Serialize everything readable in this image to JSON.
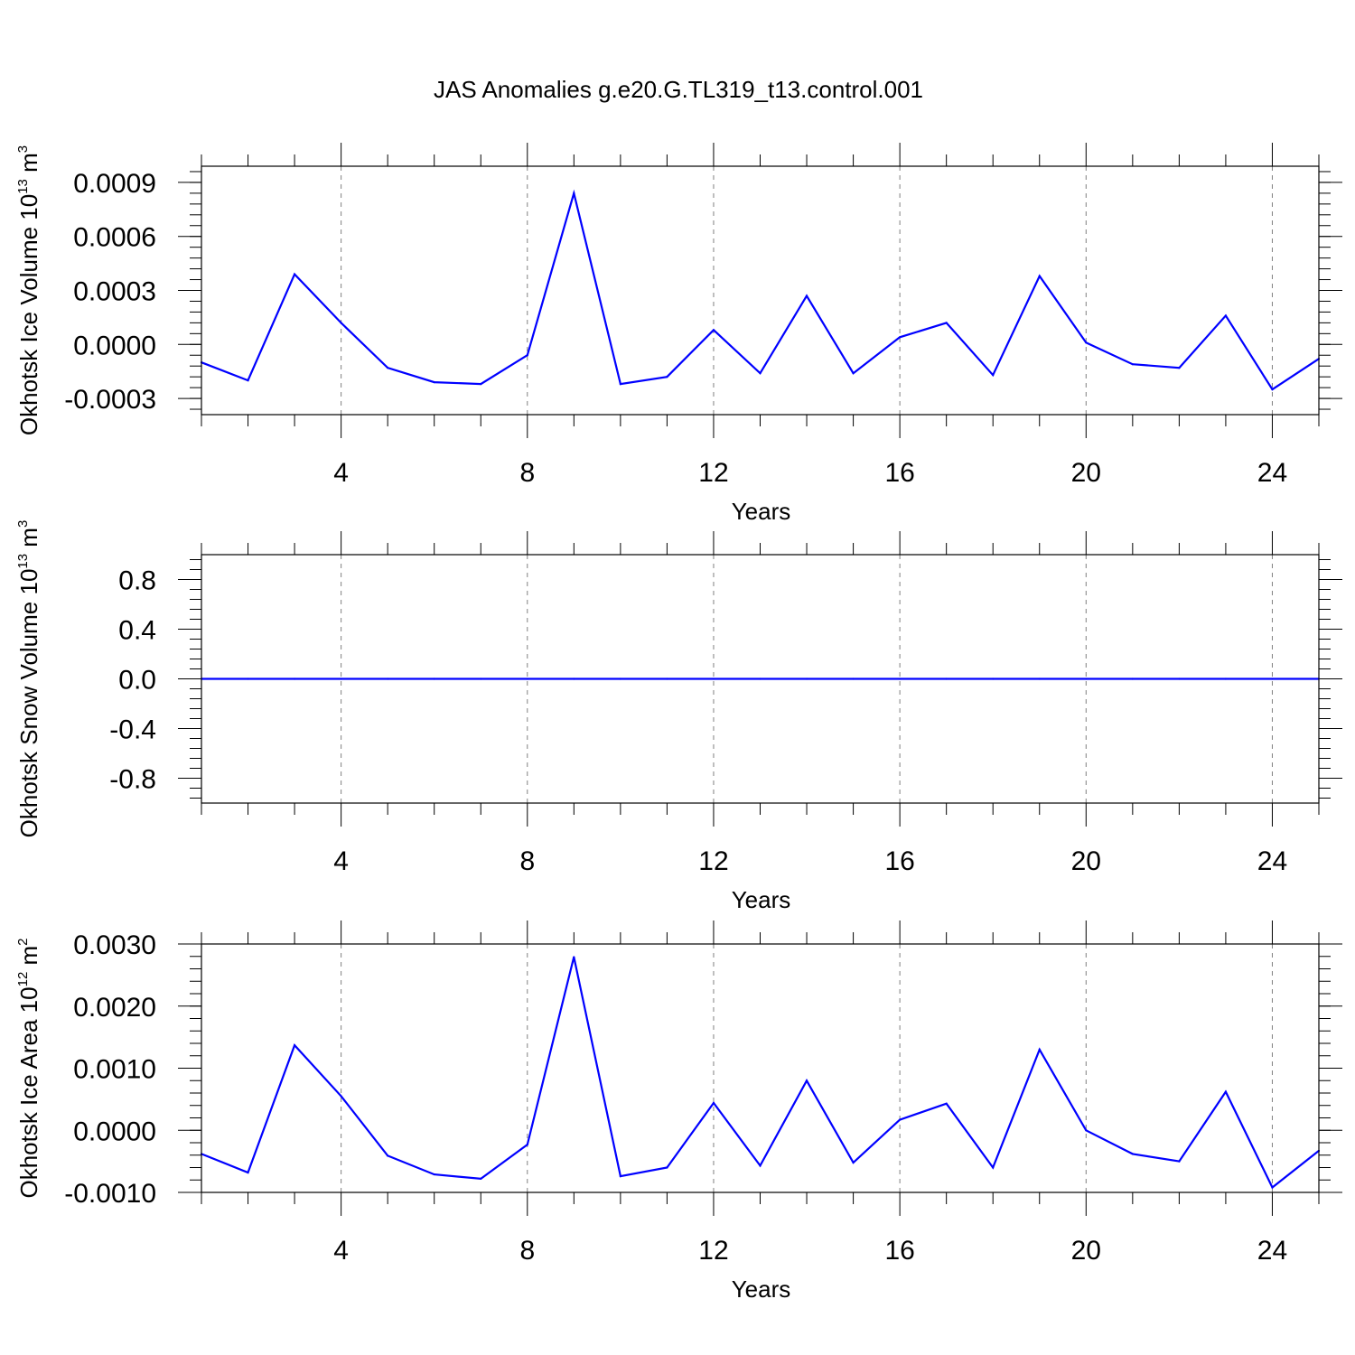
{
  "title": "JAS Anomalies g.e20.G.TL319_t13.control.001",
  "colors": {
    "series": "#0000ff",
    "axes": "#000000",
    "grid": "#808080"
  },
  "chart_data": [
    {
      "type": "line",
      "xlabel": "Years",
      "ylabel": {
        "text": "Okhotsk Ice Volume 10",
        "exp": "13",
        "unit": " m",
        "unit_exp": "3"
      },
      "xlim": [
        1,
        25
      ],
      "ylim": [
        -0.00039,
        0.00099
      ],
      "xticks": [
        4,
        8,
        12,
        16,
        20,
        24
      ],
      "xtick_labels": [
        "4",
        "8",
        "12",
        "16",
        "20",
        "24"
      ],
      "yticks": [
        -0.0003,
        0.0,
        0.0003,
        0.0006,
        0.0009
      ],
      "ytick_labels": [
        "-0.0003",
        "0.0000",
        "0.0003",
        "0.0006",
        "0.0009"
      ],
      "grid": "vertical dashed at major x ticks",
      "x": [
        1,
        2,
        3,
        4,
        5,
        6,
        7,
        8,
        9,
        10,
        11,
        12,
        13,
        14,
        15,
        16,
        17,
        18,
        19,
        20,
        21,
        22,
        23,
        24,
        25
      ],
      "values": [
        -0.0001,
        -0.0002,
        0.00039,
        0.00012,
        -0.00013,
        -0.00021,
        -0.00022,
        -6e-05,
        0.00084,
        -0.00022,
        -0.00018,
        8e-05,
        -0.00016,
        0.00027,
        -0.00016,
        4e-05,
        0.00012,
        -0.00017,
        0.00038,
        1e-05,
        -0.00011,
        -0.00013,
        0.00016,
        -0.00025,
        -8e-05
      ]
    },
    {
      "type": "line",
      "xlabel": "Years",
      "ylabel": {
        "text": "Okhotsk Snow Volume 10",
        "exp": "13",
        "unit": " m",
        "unit_exp": "3"
      },
      "xlim": [
        1,
        25
      ],
      "ylim": [
        -1.0,
        1.0
      ],
      "xticks": [
        4,
        8,
        12,
        16,
        20,
        24
      ],
      "xtick_labels": [
        "4",
        "8",
        "12",
        "16",
        "20",
        "24"
      ],
      "yticks": [
        -0.8,
        -0.4,
        0.0,
        0.4,
        0.8
      ],
      "ytick_labels": [
        "-0.8",
        "-0.4",
        "0.0",
        "0.4",
        "0.8"
      ],
      "grid": "vertical dashed at major x ticks",
      "x": [
        1,
        2,
        3,
        4,
        5,
        6,
        7,
        8,
        9,
        10,
        11,
        12,
        13,
        14,
        15,
        16,
        17,
        18,
        19,
        20,
        21,
        22,
        23,
        24,
        25
      ],
      "values": [
        0,
        0,
        0,
        0,
        0,
        0,
        0,
        0,
        0,
        0,
        0,
        0,
        0,
        0,
        0,
        0,
        0,
        0,
        0,
        0,
        0,
        0,
        0,
        0,
        0
      ]
    },
    {
      "type": "line",
      "xlabel": "Years",
      "ylabel": {
        "text": "Okhotsk Ice Area 10",
        "exp": "12",
        "unit": " m",
        "unit_exp": "2"
      },
      "xlim": [
        1,
        25
      ],
      "ylim": [
        -0.001,
        0.003
      ],
      "xticks": [
        4,
        8,
        12,
        16,
        20,
        24
      ],
      "xtick_labels": [
        "4",
        "8",
        "12",
        "16",
        "20",
        "24"
      ],
      "yticks": [
        -0.001,
        0.0,
        0.001,
        0.002,
        0.003
      ],
      "ytick_labels": [
        "-0.0010",
        "0.0000",
        "0.0010",
        "0.0020",
        "0.0030"
      ],
      "grid": "vertical dashed at major x ticks",
      "x": [
        1,
        2,
        3,
        4,
        5,
        6,
        7,
        8,
        9,
        10,
        11,
        12,
        13,
        14,
        15,
        16,
        17,
        18,
        19,
        20,
        21,
        22,
        23,
        24,
        25
      ],
      "values": [
        -0.00038,
        -0.00068,
        0.00137,
        0.00055,
        -0.00041,
        -0.00071,
        -0.00078,
        -0.00023,
        0.00279,
        -0.00074,
        -0.0006,
        0.00044,
        -0.00057,
        0.0008,
        -0.00052,
        0.00017,
        0.00043,
        -0.0006,
        0.0013,
        0.0,
        -0.00038,
        -0.0005,
        0.00062,
        -0.00092,
        -0.00033
      ]
    }
  ]
}
